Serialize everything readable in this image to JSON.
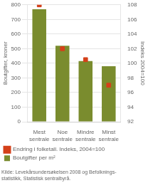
{
  "chart_data": {
    "type": "bar",
    "categories": [
      "Mest\nsentrale",
      "Noe\nsentrale",
      "Mindre\nsentrale",
      "Minst\nsentrale"
    ],
    "series": [
      {
        "name": "Boutgifter per m²",
        "type": "bar",
        "color": "#7a8c2e",
        "values": [
          770,
          520,
          415,
          380
        ]
      },
      {
        "name": "Endring i folketall. Indeks, 2004=100",
        "type": "scatter",
        "marker": "square",
        "color": "#d4401a",
        "axis": "y2",
        "values": [
          108,
          102,
          100.5,
          97
        ]
      }
    ],
    "ylabel": "Boutgifter, kroner",
    "y2label": "Indeks 2004=100",
    "ylim": [
      0,
      800
    ],
    "yticks": [
      0,
      100,
      200,
      300,
      400,
      500,
      600,
      700,
      800
    ],
    "y2lim": [
      92,
      108
    ],
    "y2ticks": [
      92,
      94,
      96,
      98,
      100,
      102,
      104,
      106,
      108
    ],
    "grid": true,
    "legend": "bottom",
    "annotations": [
      "Kilde: Levekårsundersøkelsen 2008 og Befolknings-\nstatistikk, Statistisk sentralbyrå."
    ]
  }
}
